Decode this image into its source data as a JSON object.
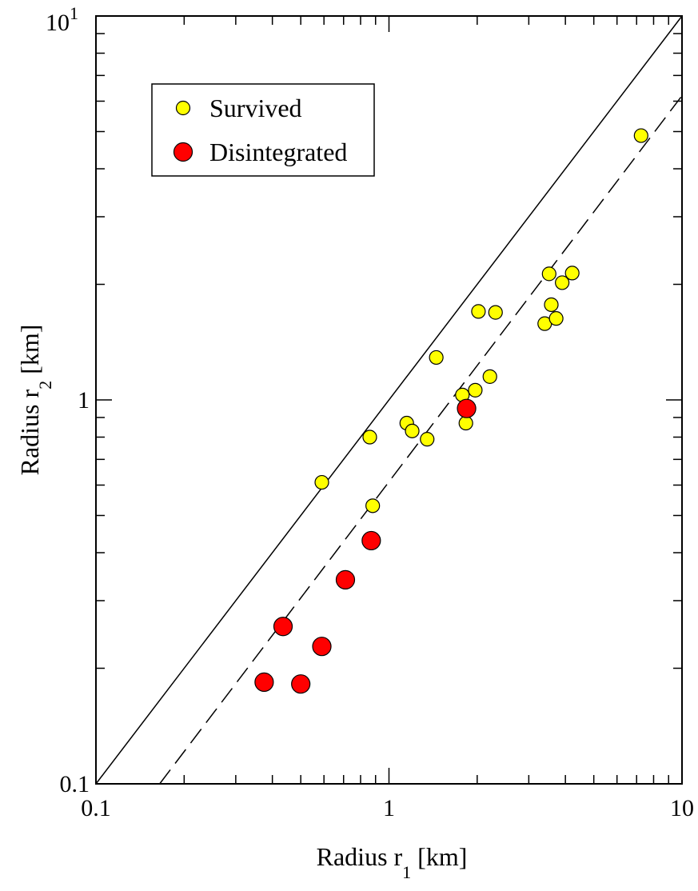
{
  "chart_data": {
    "type": "scatter",
    "x_scale": "log",
    "y_scale": "log",
    "xlim": [
      0.1,
      10
    ],
    "ylim": [
      0.1,
      10
    ],
    "xlabel": {
      "main": "Radius r",
      "sub": "1",
      "unit": " [km]"
    },
    "ylabel": {
      "main": "Radius r",
      "sub": "2",
      "unit": " [km]"
    },
    "x_ticks": [
      {
        "value": 0.1,
        "label": "0.1"
      },
      {
        "value": 1,
        "label": "1"
      },
      {
        "value": 10,
        "label": "10"
      }
    ],
    "y_ticks": [
      {
        "value": 0.1,
        "label": "0.1"
      },
      {
        "value": 1,
        "label": "1"
      },
      {
        "value": 10,
        "label": "10",
        "superscript": "1"
      }
    ],
    "legend_position": "top-left",
    "grid": false,
    "series": [
      {
        "name": "Survived",
        "color": "#ffff00",
        "marker": "small-circle",
        "points": [
          [
            0.59,
            0.61
          ],
          [
            0.86,
            0.8
          ],
          [
            0.88,
            0.53
          ],
          [
            1.15,
            0.87
          ],
          [
            1.2,
            0.83
          ],
          [
            1.35,
            0.79
          ],
          [
            1.45,
            1.29
          ],
          [
            1.78,
            1.03
          ],
          [
            1.83,
            0.87
          ],
          [
            1.97,
            1.06
          ],
          [
            2.02,
            1.7
          ],
          [
            2.21,
            1.15
          ],
          [
            2.31,
            1.69
          ],
          [
            3.4,
            1.58
          ],
          [
            3.52,
            2.13
          ],
          [
            3.58,
            1.77
          ],
          [
            3.72,
            1.63
          ],
          [
            3.9,
            2.02
          ],
          [
            4.22,
            2.14
          ],
          [
            7.25,
            4.88
          ]
        ]
      },
      {
        "name": "Disintegrated",
        "color": "#ff0000",
        "marker": "large-circle",
        "points": [
          [
            0.375,
            0.184
          ],
          [
            0.435,
            0.257
          ],
          [
            0.5,
            0.182
          ],
          [
            0.59,
            0.228
          ],
          [
            0.71,
            0.34
          ],
          [
            0.87,
            0.43
          ],
          [
            1.84,
            0.95
          ]
        ]
      }
    ],
    "reference_lines": [
      {
        "style": "solid",
        "x": [
          0.1,
          10
        ],
        "y": [
          0.1,
          10
        ]
      },
      {
        "style": "dashed",
        "x": [
          0.165,
          10
        ],
        "y": [
          0.1,
          6.2
        ]
      }
    ]
  }
}
